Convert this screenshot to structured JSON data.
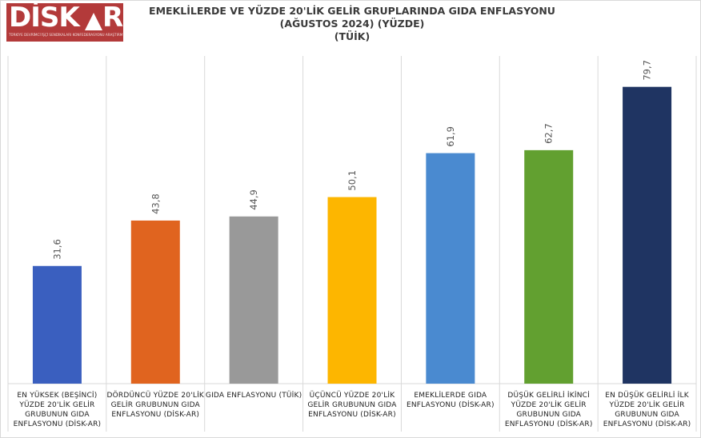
{
  "logo": {
    "text": "DİSKAR",
    "subtitle": "TÜRKİYE DEVRİMCİ İŞÇİ SENDİKALARI KONFEDERASYONU ARAŞTIRMA MERKEZİ"
  },
  "chart_data": {
    "type": "bar",
    "title": "EMEKLİLERDE VE YÜZDE 20'LİK GELİR GRUPLARINDA GIDA ENFLASYONU",
    "subtitle": "(AĞUSTOS 2024) (YÜZDE)",
    "source": "(TÜİK)",
    "categories": [
      "EN YÜKSEK (BEŞİNCİ) YÜZDE 20'LİK GELİR GRUBUNUN GIDA ENFLASYONU (DİSK-AR)",
      "DÖRDÜNCÜ YÜZDE 20'LİK GELİR GRUBUNUN GIDA ENFLASYONU (DİSK-AR)",
      "GIDA ENFLASYONU (TÜİK)",
      "ÜÇÜNCÜ YÜZDE 20'LİK GELİR GRUBUNUN GIDA ENFLASYONU (DİSK-AR)",
      "EMEKLİLERDE GIDA ENFLASYONU (DİSK-AR)",
      "DÜŞÜK GELİRLİ İKİNCİ YÜZDE 20'LİK GELİR GRUBUNUN GIDA ENFLASYONU (DİSK-AR)",
      "EN DÜŞÜK GELİRLİ İLK YÜZDE 20'LİK GELİR GRUBUNUN GIDA ENFLASYONU (DİSK-AR)"
    ],
    "values": [
      31.6,
      43.8,
      44.9,
      50.1,
      61.9,
      62.7,
      79.7
    ],
    "value_labels": [
      "31,6",
      "43,8",
      "44,9",
      "50,1",
      "61,9",
      "62,7",
      "79,7"
    ],
    "colors": [
      "#3a5fbf",
      "#e0641f",
      "#999999",
      "#fdb600",
      "#4a8ad0",
      "#62a030",
      "#1f3462"
    ],
    "ylim": [
      0,
      88
    ],
    "grid": "vertical separators",
    "legend": "none"
  }
}
